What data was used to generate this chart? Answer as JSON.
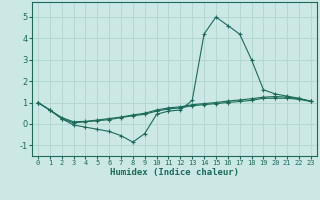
{
  "xlabel": "Humidex (Indice chaleur)",
  "bg_color": "#cce8e4",
  "grid_color": "#b0d4ce",
  "line_color": "#1a6b5a",
  "xlim": [
    -0.5,
    23.5
  ],
  "ylim": [
    -1.5,
    5.7
  ],
  "xticks": [
    0,
    1,
    2,
    3,
    4,
    5,
    6,
    7,
    8,
    9,
    10,
    11,
    12,
    13,
    14,
    15,
    16,
    17,
    18,
    19,
    20,
    21,
    22,
    23
  ],
  "yticks": [
    -1,
    0,
    1,
    2,
    3,
    4,
    5
  ],
  "line1_x": [
    0,
    1,
    2,
    3,
    4,
    5,
    6,
    7,
    8,
    9,
    10,
    11,
    12,
    13,
    14,
    15,
    16,
    17,
    18,
    19,
    20,
    21,
    22,
    23
  ],
  "line1_y": [
    1.0,
    0.65,
    0.25,
    -0.05,
    -0.15,
    -0.25,
    -0.35,
    -0.55,
    -0.85,
    -0.45,
    0.45,
    0.6,
    0.65,
    1.1,
    4.2,
    5.0,
    4.6,
    4.2,
    3.0,
    1.6,
    1.4,
    1.3,
    1.2,
    1.05
  ],
  "line2_x": [
    0,
    1,
    2,
    3,
    4,
    5,
    6,
    7,
    8,
    9,
    10,
    11,
    12,
    13,
    14,
    15,
    16,
    17,
    18,
    19,
    20,
    21,
    22,
    23
  ],
  "line2_y": [
    1.0,
    0.65,
    0.25,
    0.05,
    0.1,
    0.15,
    0.2,
    0.3,
    0.38,
    0.45,
    0.6,
    0.7,
    0.75,
    0.85,
    0.9,
    0.95,
    1.0,
    1.05,
    1.1,
    1.2,
    1.2,
    1.2,
    1.15,
    1.05
  ],
  "line3_x": [
    0,
    1,
    2,
    3,
    4,
    5,
    6,
    7,
    8,
    9,
    10,
    11,
    12,
    13,
    14,
    15,
    16,
    17,
    18,
    19,
    20,
    21,
    22,
    23
  ],
  "line3_y": [
    1.0,
    0.65,
    0.3,
    0.1,
    0.12,
    0.18,
    0.25,
    0.32,
    0.42,
    0.5,
    0.65,
    0.75,
    0.8,
    0.9,
    0.95,
    1.0,
    1.07,
    1.12,
    1.18,
    1.25,
    1.28,
    1.25,
    1.18,
    1.07
  ],
  "marker": "+",
  "markersize": 3.0,
  "linewidth": 0.8
}
